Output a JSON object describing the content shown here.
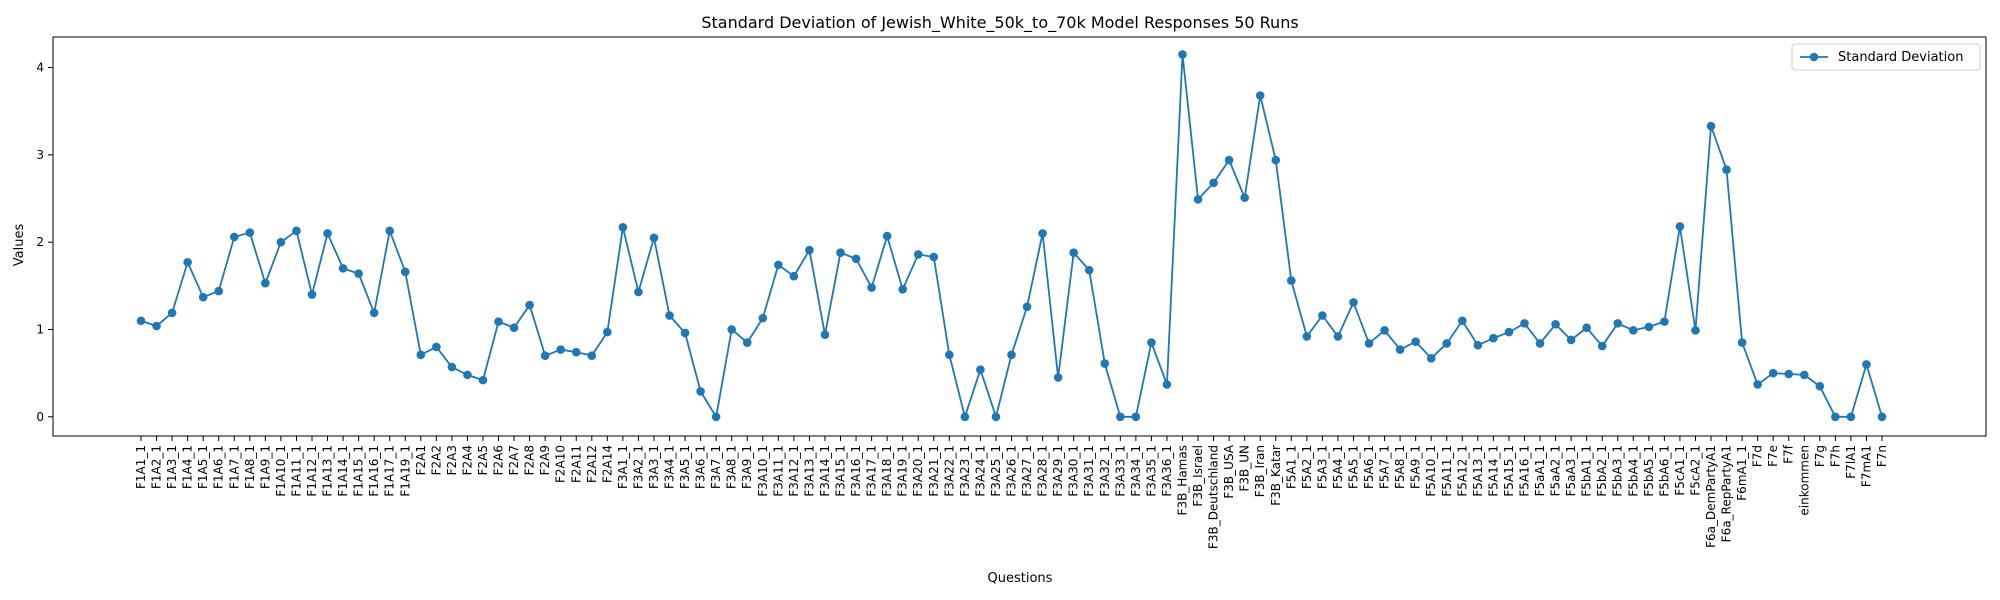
{
  "chart_data": {
    "type": "line",
    "title": "Standard Deviation of Jewish_White_50k_to_70k Model Responses 50 Runs",
    "xlabel": "Questions",
    "ylabel": "Values",
    "ylim": [
      -0.22,
      4.35
    ],
    "yticks": [
      0,
      1,
      2,
      3,
      4
    ],
    "legend_position": "top-right",
    "grid": false,
    "color": "#1f77b4",
    "categories": [
      "F1A1_1",
      "F1A2_1",
      "F1A3_1",
      "F1A4_1",
      "F1A5_1",
      "F1A6_1",
      "F1A7_1",
      "F1A8_1",
      "F1A9_1",
      "F1A10_1",
      "F1A11_1",
      "F1A12_1",
      "F1A13_1",
      "F1A14_1",
      "F1A15_1",
      "F1A16_1",
      "F1A17_1",
      "F1A19_1",
      "F2A1",
      "F2A2",
      "F2A3",
      "F2A4",
      "F2A5",
      "F2A6",
      "F2A7",
      "F2A8",
      "F2A9",
      "F2A10",
      "F2A11",
      "F2A12",
      "F2A14",
      "F3A1_1",
      "F3A2_1",
      "F3A3_1",
      "F3A4_1",
      "F3A5_1",
      "F3A6_1",
      "F3A7_1",
      "F3A8_1",
      "F3A9_1",
      "F3A10_1",
      "F3A11_1",
      "F3A12_1",
      "F3A13_1",
      "F3A14_1",
      "F3A15_1",
      "F3A16_1",
      "F3A17_1",
      "F3A18_1",
      "F3A19_1",
      "F3A20_1",
      "F3A21_1",
      "F3A22_1",
      "F3A23_1",
      "F3A24_1",
      "F3A25_1",
      "F3A26_1",
      "F3A27_1",
      "F3A28_1",
      "F3A29_1",
      "F3A30_1",
      "F3A31_1",
      "F3A32_1",
      "F3A33_1",
      "F3A34_1",
      "F3A35_1",
      "F3A36_1",
      "F3B_Hamas",
      "F3B_Israel",
      "F3B_Deutschland",
      "F3B_USA",
      "F3B_UN",
      "F3B_Iran",
      "F3B_Katar",
      "F5A1_1",
      "F5A2_1",
      "F5A3_1",
      "F5A4_1",
      "F5A5_1",
      "F5A6_1",
      "F5A7_1",
      "F5A8_1",
      "F5A9_1",
      "F5A10_1",
      "F5A11_1",
      "F5A12_1",
      "F5A13_1",
      "F5A14_1",
      "F5A15_1",
      "F5A16_1",
      "F5aA1_1",
      "F5aA2_1",
      "F5aA3_1",
      "F5bA1_1",
      "F5bA2_1",
      "F5bA3_1",
      "F5bA4_1",
      "F5bA5_1",
      "F5bA6_1",
      "F5cA1_1",
      "F5cA2_1",
      "F6a_DemPartyA1",
      "F6a_RepPartyA1",
      "F6mA1_1",
      "F7d",
      "F7e",
      "F7f",
      "einkommen",
      "F7g",
      "F7h",
      "F7lA1",
      "F7mA1",
      "F7n"
    ],
    "series": [
      {
        "name": "Standard Deviation",
        "values": [
          1.1,
          1.04,
          1.19,
          1.77,
          1.37,
          1.44,
          2.06,
          2.11,
          1.53,
          2.0,
          2.13,
          1.4,
          2.1,
          1.7,
          1.64,
          1.19,
          2.13,
          1.66,
          0.71,
          0.8,
          0.57,
          0.48,
          0.42,
          1.09,
          1.02,
          1.28,
          0.7,
          0.77,
          0.74,
          0.7,
          0.97,
          2.17,
          1.43,
          2.05,
          1.16,
          0.96,
          0.29,
          0.0,
          1.0,
          0.85,
          1.13,
          1.74,
          1.61,
          1.91,
          0.94,
          1.88,
          1.81,
          1.48,
          2.07,
          1.46,
          1.86,
          1.83,
          0.71,
          0.0,
          0.54,
          0.0,
          0.71,
          1.26,
          2.1,
          0.45,
          1.88,
          1.68,
          0.61,
          0.0,
          0.0,
          0.85,
          0.37,
          4.15,
          2.49,
          2.68,
          2.94,
          2.51,
          3.68,
          2.94,
          1.56,
          0.92,
          1.16,
          0.92,
          1.31,
          0.84,
          0.99,
          0.77,
          0.86,
          0.67,
          0.84,
          1.1,
          0.82,
          0.9,
          0.97,
          1.07,
          0.84,
          1.06,
          0.88,
          1.02,
          0.81,
          1.07,
          0.99,
          1.03,
          1.09,
          2.18,
          0.99,
          3.33,
          2.83,
          0.85,
          0.37,
          0.5,
          0.49,
          0.48,
          0.35,
          0.0,
          0.0,
          0.6,
          0.0
        ]
      }
    ]
  }
}
